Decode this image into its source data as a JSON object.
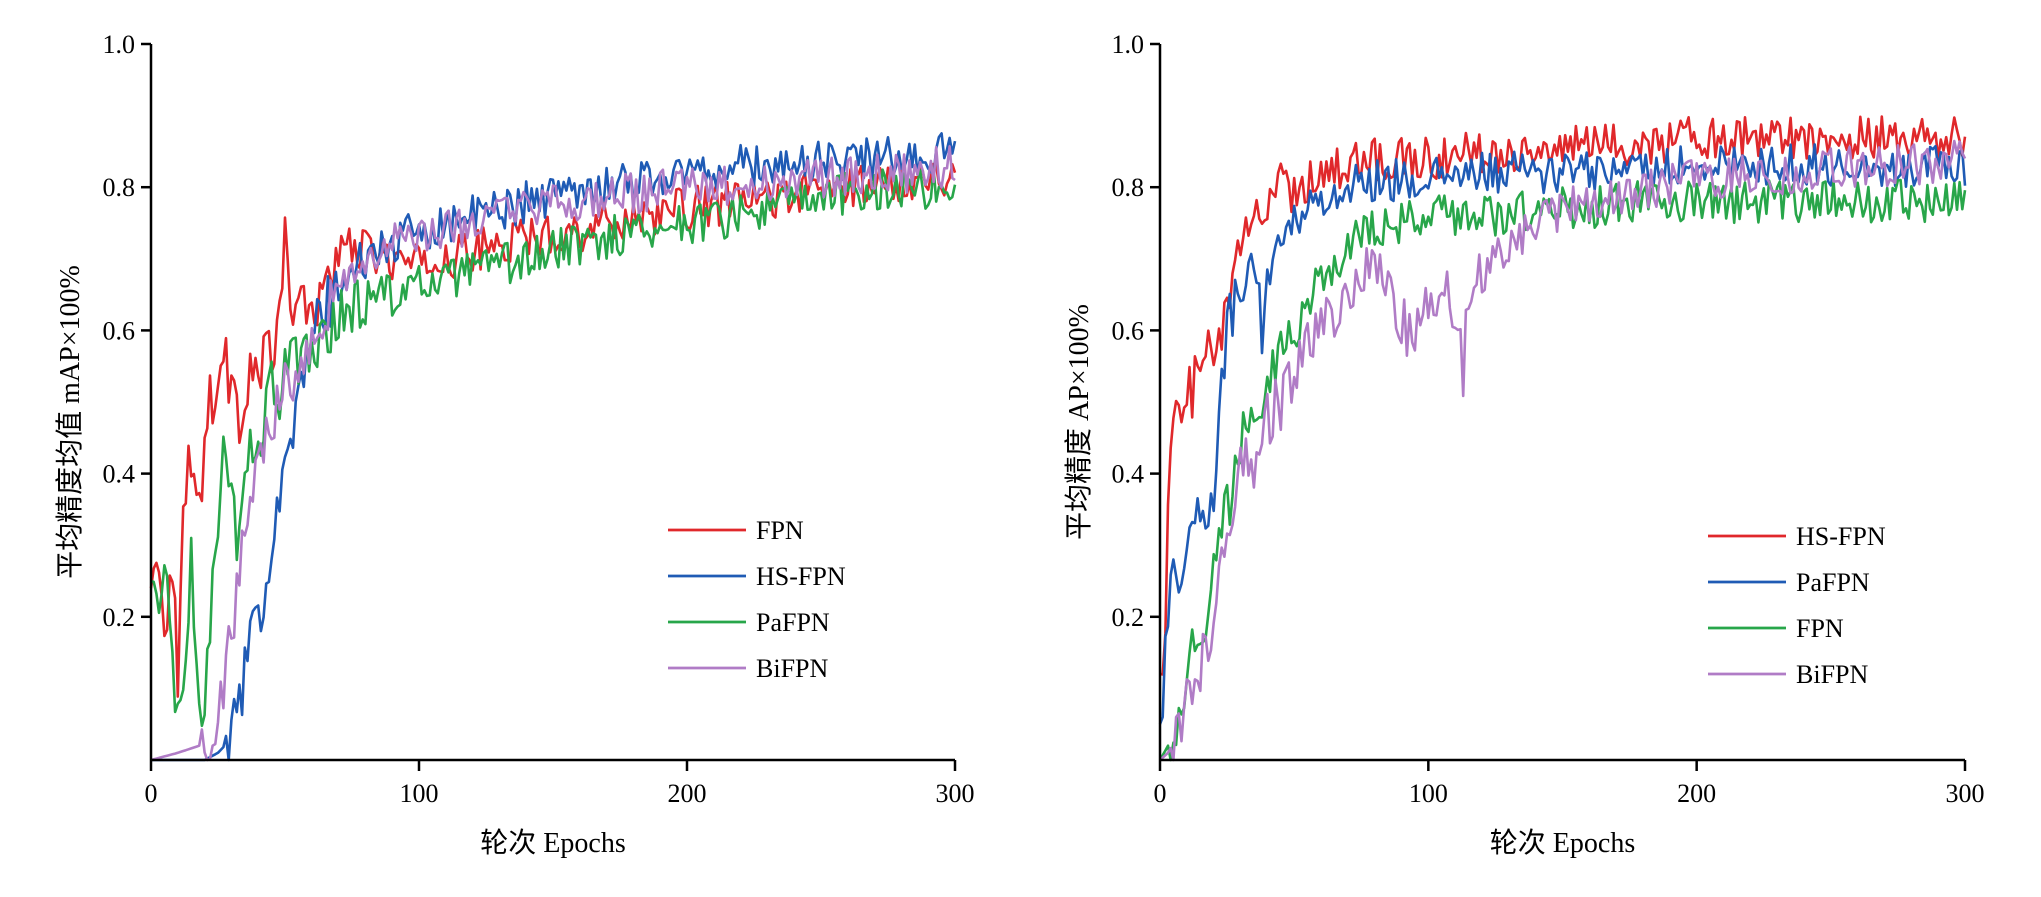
{
  "colors": {
    "red": "#e0282b",
    "blue": "#1f5bb5",
    "green": "#28a64a",
    "purple": "#b07cc6",
    "axis": "#000000",
    "background": "#ffffff"
  },
  "chart_data": [
    {
      "type": "line",
      "title": "",
      "xlabel": "轮次 Epochs",
      "ylabel": "平均精度均值 mAP×100%",
      "xlim": [
        0,
        300
      ],
      "ylim": [
        0,
        1.0
      ],
      "xticks": [
        0,
        100,
        200,
        300
      ],
      "xtick_labels": [
        "0",
        "100",
        "200",
        "300"
      ],
      "yticks": [
        0.2,
        0.4,
        0.6,
        0.8,
        1.0
      ],
      "ytick_labels": [
        "0.2",
        "0.4",
        "0.6",
        "0.8",
        "1.0"
      ],
      "grid": false,
      "legend_position": "lower-right",
      "series": [
        {
          "name": "FPN",
          "color": "red",
          "x": [
            0,
            3,
            5,
            8,
            10,
            12,
            15,
            18,
            20,
            22,
            25,
            28,
            30,
            33,
            35,
            38,
            40,
            43,
            45,
            48,
            50,
            52,
            55,
            58,
            60,
            65,
            70,
            75,
            80,
            90,
            100,
            120,
            140,
            160,
            180,
            200,
            220,
            240,
            260,
            280,
            300
          ],
          "y": [
            0.24,
            0.29,
            0.2,
            0.26,
            0.13,
            0.38,
            0.42,
            0.35,
            0.45,
            0.5,
            0.53,
            0.57,
            0.5,
            0.48,
            0.52,
            0.56,
            0.53,
            0.58,
            0.56,
            0.6,
            0.75,
            0.62,
            0.66,
            0.6,
            0.63,
            0.67,
            0.7,
            0.72,
            0.71,
            0.7,
            0.69,
            0.71,
            0.73,
            0.74,
            0.76,
            0.77,
            0.78,
            0.79,
            0.8,
            0.81,
            0.82
          ]
        },
        {
          "name": "HS-FPN",
          "color": "blue",
          "x": [
            0,
            10,
            20,
            25,
            30,
            35,
            38,
            40,
            43,
            45,
            48,
            50,
            53,
            55,
            58,
            60,
            65,
            70,
            75,
            80,
            90,
            100,
            120,
            140,
            160,
            180,
            200,
            220,
            240,
            260,
            280,
            300
          ],
          "y": [
            0.0,
            0.0,
            0.0,
            0.01,
            0.03,
            0.12,
            0.17,
            0.2,
            0.25,
            0.32,
            0.38,
            0.43,
            0.47,
            0.5,
            0.54,
            0.6,
            0.63,
            0.66,
            0.68,
            0.7,
            0.72,
            0.74,
            0.76,
            0.78,
            0.8,
            0.81,
            0.82,
            0.83,
            0.83,
            0.84,
            0.84,
            0.85
          ]
        },
        {
          "name": "PaFPN",
          "color": "green",
          "x": [
            0,
            3,
            6,
            8,
            10,
            12,
            15,
            17,
            20,
            22,
            25,
            27,
            30,
            33,
            35,
            38,
            40,
            43,
            45,
            48,
            50,
            55,
            60,
            65,
            70,
            80,
            90,
            100,
            120,
            140,
            160,
            180,
            200,
            220,
            240,
            260,
            280,
            300
          ],
          "y": [
            0.25,
            0.21,
            0.26,
            0.15,
            0.04,
            0.1,
            0.27,
            0.12,
            0.05,
            0.2,
            0.32,
            0.42,
            0.35,
            0.3,
            0.39,
            0.45,
            0.44,
            0.5,
            0.53,
            0.5,
            0.56,
            0.55,
            0.58,
            0.6,
            0.62,
            0.64,
            0.65,
            0.66,
            0.68,
            0.7,
            0.72,
            0.74,
            0.75,
            0.76,
            0.78,
            0.79,
            0.8,
            0.8
          ]
        },
        {
          "name": "BiFPN",
          "color": "purple",
          "x": [
            0,
            10,
            18,
            20,
            23,
            25,
            28,
            30,
            33,
            35,
            38,
            40,
            43,
            45,
            48,
            50,
            55,
            60,
            65,
            70,
            80,
            90,
            100,
            120,
            140,
            160,
            180,
            200,
            220,
            240,
            260,
            280,
            300
          ],
          "y": [
            0.0,
            0.01,
            0.02,
            0.04,
            0.02,
            0.08,
            0.12,
            0.18,
            0.25,
            0.33,
            0.38,
            0.42,
            0.45,
            0.48,
            0.5,
            0.52,
            0.56,
            0.6,
            0.63,
            0.66,
            0.7,
            0.72,
            0.73,
            0.75,
            0.77,
            0.78,
            0.79,
            0.8,
            0.8,
            0.81,
            0.82,
            0.82,
            0.83
          ]
        }
      ]
    },
    {
      "type": "line",
      "title": "",
      "xlabel": "轮次 Epochs",
      "ylabel": "平均精度 AP×100%",
      "xlim": [
        0,
        300
      ],
      "ylim": [
        0,
        1.0
      ],
      "xticks": [
        0,
        100,
        200,
        300
      ],
      "xtick_labels": [
        "0",
        "100",
        "200",
        "300"
      ],
      "yticks": [
        0.2,
        0.4,
        0.6,
        0.8,
        1.0
      ],
      "ytick_labels": [
        "0.2",
        "0.4",
        "0.6",
        "0.8",
        "1.0"
      ],
      "grid": false,
      "legend_position": "lower-right",
      "series": [
        {
          "name": "HS-FPN",
          "color": "red",
          "x": [
            0,
            2,
            4,
            6,
            8,
            10,
            12,
            15,
            18,
            20,
            22,
            25,
            28,
            30,
            33,
            35,
            38,
            40,
            43,
            45,
            48,
            50,
            55,
            60,
            70,
            80,
            100,
            120,
            140,
            160,
            180,
            200,
            220,
            240,
            260,
            280,
            300
          ],
          "y": [
            0.12,
            0.2,
            0.45,
            0.48,
            0.47,
            0.5,
            0.52,
            0.54,
            0.56,
            0.57,
            0.58,
            0.62,
            0.68,
            0.72,
            0.74,
            0.76,
            0.77,
            0.78,
            0.8,
            0.85,
            0.78,
            0.8,
            0.81,
            0.82,
            0.83,
            0.84,
            0.84,
            0.85,
            0.85,
            0.86,
            0.86,
            0.87,
            0.87,
            0.87,
            0.87,
            0.87,
            0.87
          ]
        },
        {
          "name": "PaFPN",
          "color": "blue",
          "x": [
            0,
            2,
            4,
            6,
            8,
            10,
            12,
            15,
            18,
            20,
            22,
            25,
            28,
            30,
            33,
            35,
            38,
            40,
            43,
            45,
            48,
            50,
            55,
            60,
            70,
            80,
            100,
            120,
            140,
            160,
            180,
            200,
            220,
            240,
            260,
            280,
            300
          ],
          "y": [
            0.05,
            0.15,
            0.22,
            0.26,
            0.28,
            0.3,
            0.32,
            0.34,
            0.35,
            0.36,
            0.5,
            0.6,
            0.65,
            0.62,
            0.68,
            0.7,
            0.6,
            0.68,
            0.7,
            0.72,
            0.75,
            0.76,
            0.77,
            0.78,
            0.8,
            0.81,
            0.81,
            0.82,
            0.82,
            0.82,
            0.83,
            0.83,
            0.83,
            0.83,
            0.83,
            0.83,
            0.83
          ]
        },
        {
          "name": "FPN",
          "color": "green",
          "x": [
            0,
            3,
            6,
            8,
            10,
            12,
            15,
            18,
            20,
            22,
            25,
            28,
            30,
            33,
            35,
            38,
            40,
            45,
            50,
            55,
            60,
            65,
            70,
            80,
            90,
            100,
            120,
            140,
            160,
            180,
            200,
            220,
            240,
            260,
            280,
            300
          ],
          "y": [
            0.0,
            0.02,
            0.05,
            0.08,
            0.12,
            0.15,
            0.18,
            0.22,
            0.26,
            0.3,
            0.35,
            0.4,
            0.44,
            0.48,
            0.5,
            0.52,
            0.54,
            0.58,
            0.6,
            0.63,
            0.66,
            0.69,
            0.72,
            0.74,
            0.75,
            0.76,
            0.76,
            0.77,
            0.77,
            0.78,
            0.78,
            0.78,
            0.78,
            0.78,
            0.78,
            0.78
          ]
        },
        {
          "name": "BiFPN",
          "color": "purple",
          "x": [
            0,
            3,
            6,
            8,
            10,
            12,
            15,
            18,
            20,
            22,
            25,
            28,
            30,
            33,
            35,
            38,
            40,
            45,
            50,
            55,
            60,
            65,
            70,
            75,
            80,
            85,
            90,
            95,
            100,
            105,
            110,
            113,
            115,
            120,
            130,
            140,
            160,
            180,
            200,
            220,
            240,
            260,
            280,
            300
          ],
          "y": [
            0.0,
            0.01,
            0.03,
            0.05,
            0.08,
            0.1,
            0.13,
            0.16,
            0.2,
            0.25,
            0.3,
            0.35,
            0.4,
            0.42,
            0.38,
            0.45,
            0.48,
            0.5,
            0.55,
            0.58,
            0.6,
            0.62,
            0.65,
            0.68,
            0.7,
            0.66,
            0.62,
            0.58,
            0.63,
            0.66,
            0.62,
            0.55,
            0.66,
            0.68,
            0.72,
            0.75,
            0.78,
            0.8,
            0.81,
            0.82,
            0.82,
            0.83,
            0.83,
            0.84
          ]
        }
      ]
    }
  ]
}
